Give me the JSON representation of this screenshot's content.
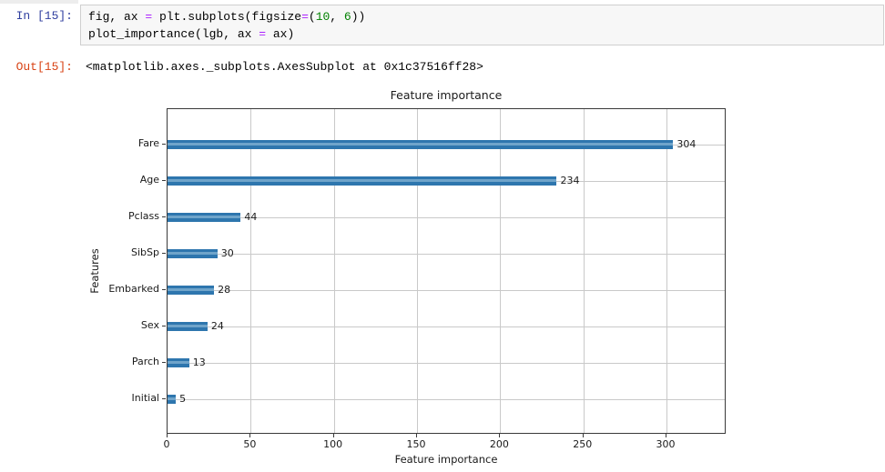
{
  "notebook": {
    "in_prompt": "In [15]:",
    "out_prompt": "Out[15]:",
    "code_lines": [
      {
        "segments": [
          {
            "t": "fig, ax "
          },
          {
            "t": "=",
            "c": "op"
          },
          {
            "t": " plt.subplots(figsize"
          },
          {
            "t": "=",
            "c": "op"
          },
          {
            "t": "("
          },
          {
            "t": "10",
            "c": "num"
          },
          {
            "t": ", "
          },
          {
            "t": "6",
            "c": "num"
          },
          {
            "t": "))"
          }
        ]
      },
      {
        "segments": [
          {
            "t": "plot_importance(lgb, ax "
          },
          {
            "t": "=",
            "c": "op"
          },
          {
            "t": " ax)"
          }
        ]
      }
    ],
    "output_text": "<matplotlib.axes._subplots.AxesSubplot at 0x1c37516ff28>"
  },
  "chart_data": {
    "type": "bar",
    "orientation": "horizontal",
    "title": "Feature importance",
    "xlabel": "Feature importance",
    "ylabel": "Features",
    "categories": [
      "Fare",
      "Age",
      "Pclass",
      "SibSp",
      "Embarked",
      "Sex",
      "Parch",
      "Initial"
    ],
    "values": [
      304,
      234,
      44,
      30,
      28,
      24,
      13,
      5
    ],
    "xlim": [
      0,
      335
    ],
    "xticks": [
      0,
      50,
      100,
      150,
      200,
      250,
      300
    ],
    "grid": true,
    "legend": "none",
    "bar_color": "#2e76ae",
    "bar_stripe_color": "#6fa4ca"
  },
  "colors": {
    "in_prompt": "#303f9f",
    "out_prompt": "#d84315",
    "cell_background": "#f7f7f7",
    "cell_border": "#cfcfcf",
    "gridline": "#c9c9c9",
    "axis": "#3a3a3a",
    "code_operator": "#aa22ff",
    "code_number": "#008000"
  }
}
